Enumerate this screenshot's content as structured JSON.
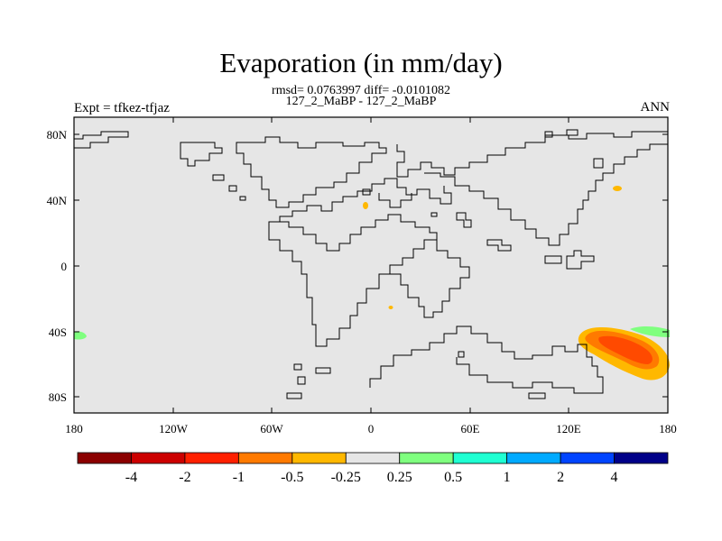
{
  "title": "Evaporation (in mm/day)",
  "subtitle_stats": "rmsd= 0.0763997 diff= -0.0101082",
  "subtitle_cases": "127_2_MaBP - 127_2_MaBP",
  "experiment_label": "Expt = tfkez-tfjaz",
  "season_label": "ANN",
  "map": {
    "background_color": "#e6e6e6",
    "coastline_color": "#000000"
  },
  "lat_ticks": [
    "80N",
    "40N",
    "0",
    "40S",
    "80S"
  ],
  "lon_ticks": [
    "180",
    "120W",
    "60W",
    "0",
    "60E",
    "120E",
    "180"
  ],
  "colorbar": {
    "colors": [
      "#8b0000",
      "#cc0000",
      "#ff2000",
      "#ff7a00",
      "#ffb800",
      "#e6e6e6",
      "#7fff7f",
      "#1fffd2",
      "#00aaff",
      "#0044ff",
      "#000088"
    ],
    "labels": [
      "-4",
      "-2",
      "-1",
      "-0.5",
      "-0.25",
      "0.25",
      "0.5",
      "1",
      "2",
      "4"
    ]
  }
}
